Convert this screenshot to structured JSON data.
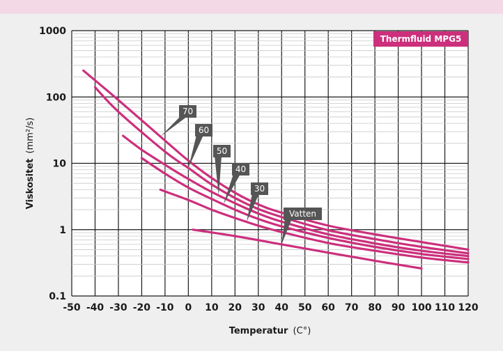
{
  "chart_data": {
    "type": "line",
    "title": "Thermfluid MPG5",
    "xlabel": "Temperatur",
    "xlabel_unit": "(C°)",
    "ylabel": "Viskositet",
    "ylabel_unit": "(mm²/s)",
    "x_scale": "linear",
    "y_scale": "log",
    "xlim": [
      -50,
      120
    ],
    "ylim": [
      0.1,
      1000
    ],
    "x_ticks": [
      "-50",
      "-40",
      "-30",
      "-20",
      "-10",
      "0",
      "10",
      "20",
      "30",
      "40",
      "50",
      "60",
      "70",
      "80",
      "90",
      "100",
      "110",
      "120"
    ],
    "y_ticks": [
      "1000",
      "100",
      "10",
      "1",
      "0.1"
    ],
    "grid": true,
    "legend": "callouts",
    "colors": {
      "series": "#cc2f7c",
      "badge": "#cc2f7c",
      "callout": "#555555",
      "plot_bg": "#ffffff",
      "page_bg": "#efefef",
      "top_band": "#f3d9e6"
    },
    "series": [
      {
        "name": "70",
        "x": [
          -45,
          -30,
          -10,
          0,
          10,
          20,
          30,
          40,
          60,
          80,
          100,
          120
        ],
        "y": [
          250,
          90,
          22,
          11,
          6,
          3.6,
          2.4,
          1.8,
          1.15,
          0.85,
          0.65,
          0.5
        ]
      },
      {
        "name": "60",
        "x": [
          -40,
          -30,
          -10,
          0,
          10,
          20,
          30,
          40,
          60,
          80,
          100,
          120
        ],
        "y": [
          140,
          60,
          15,
          8.5,
          4.8,
          3,
          2.05,
          1.55,
          0.98,
          0.72,
          0.55,
          0.44
        ]
      },
      {
        "name": "50",
        "x": [
          -28,
          -20,
          -10,
          0,
          10,
          20,
          30,
          40,
          60,
          80,
          100,
          120
        ],
        "y": [
          26,
          16,
          9.5,
          5.8,
          3.7,
          2.5,
          1.75,
          1.32,
          0.85,
          0.62,
          0.48,
          0.4
        ]
      },
      {
        "name": "40",
        "x": [
          -20,
          -10,
          0,
          10,
          20,
          30,
          40,
          60,
          80,
          100,
          120
        ],
        "y": [
          12,
          7,
          4.3,
          2.9,
          2,
          1.45,
          1.12,
          0.75,
          0.55,
          0.43,
          0.36
        ]
      },
      {
        "name": "30",
        "x": [
          -12,
          0,
          10,
          20,
          30,
          40,
          60,
          80,
          100,
          120
        ],
        "y": [
          4,
          2.8,
          2,
          1.5,
          1.15,
          0.92,
          0.63,
          0.48,
          0.38,
          0.32
        ]
      },
      {
        "name": "Vatten",
        "x": [
          2,
          20,
          40,
          60,
          80,
          100
        ],
        "y": [
          1,
          0.8,
          0.6,
          0.45,
          0.34,
          0.26
        ]
      }
    ]
  }
}
